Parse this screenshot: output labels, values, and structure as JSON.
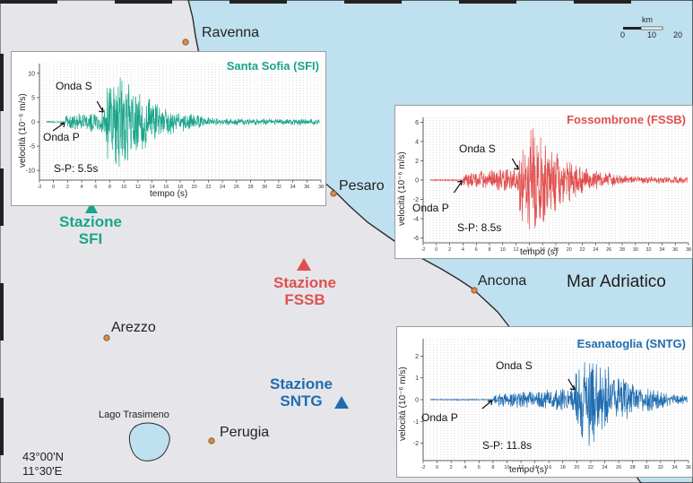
{
  "map": {
    "sea_name": "Mar Adriatico",
    "coords": {
      "lat": "43°00'N",
      "lon": "11°30'E"
    },
    "scale": {
      "unit": "km",
      "ticks": [
        "0",
        "10",
        "20"
      ]
    },
    "cities": [
      {
        "id": "ravenna",
        "name": "Ravenna"
      },
      {
        "id": "pesaro",
        "name": "Pesaro"
      },
      {
        "id": "ancona",
        "name": "Ancona"
      },
      {
        "id": "arezzo",
        "name": "Arezzo"
      },
      {
        "id": "perugia",
        "name": "Perugia"
      }
    ],
    "lake": "Lago Trasimeno",
    "stations": [
      {
        "id": "SFI",
        "label": "Stazione",
        "code": "SFI",
        "color": "#1aa58a"
      },
      {
        "id": "FSSB",
        "label": "Stazione",
        "code": "FSSB",
        "color": "#e0504f"
      },
      {
        "id": "SNTG",
        "label": "Stazione",
        "code": "SNTG",
        "color": "#1f6cb0"
      }
    ],
    "colors": {
      "land": "#e6e6ea",
      "sea": "#bfe0ef",
      "city_dot": "#d98a4e"
    }
  },
  "chart_data": [
    {
      "type": "line",
      "title": "Santa Sofia (SFI)",
      "color": "#1aa58a",
      "xlabel": "tempo (s)",
      "ylabel": "velocità (10⁻⁶ m/s)",
      "xlim": [
        -2,
        38
      ],
      "ylim": [
        -12,
        12
      ],
      "yticks": [
        "10",
        "5",
        "0",
        "-5",
        "-10"
      ],
      "p_arrival_s": 1.7,
      "s_arrival_s": 7.2,
      "p_label": "Onda P",
      "s_label": "Onda S",
      "sp_label": "S-P: 5.5s",
      "peak_amplitude": 11
    },
    {
      "type": "line",
      "title": "Fossombrone (FSSB)",
      "color": "#e0504f",
      "xlabel": "tempo (s)",
      "ylabel": "velocità (10⁻⁶ m/s)",
      "xlim": [
        -2,
        38
      ],
      "ylim": [
        -6.5,
        6.5
      ],
      "yticks": [
        "6",
        "4",
        "2",
        "0",
        "-2",
        "-4",
        "-6"
      ],
      "p_arrival_s": 4.0,
      "s_arrival_s": 12.5,
      "p_label": "Onda P",
      "s_label": "Onda S",
      "sp_label": "S-P: 8.5s",
      "peak_amplitude": 6.2
    },
    {
      "type": "line",
      "title": "Esanatoglia (SNTG)",
      "color": "#1f6cb0",
      "xlabel": "tempo (s)",
      "ylabel": "velocità (10⁻⁶ m/s)",
      "xlim": [
        -2,
        36
      ],
      "ylim": [
        -2.8,
        2.8
      ],
      "yticks": [
        "2",
        "1",
        "0",
        "-1",
        "-2"
      ],
      "p_arrival_s": 8.0,
      "s_arrival_s": 19.8,
      "p_label": "Onda P",
      "s_label": "Onda S",
      "sp_label": "S-P: 11.8s",
      "peak_amplitude": 2.5
    }
  ]
}
